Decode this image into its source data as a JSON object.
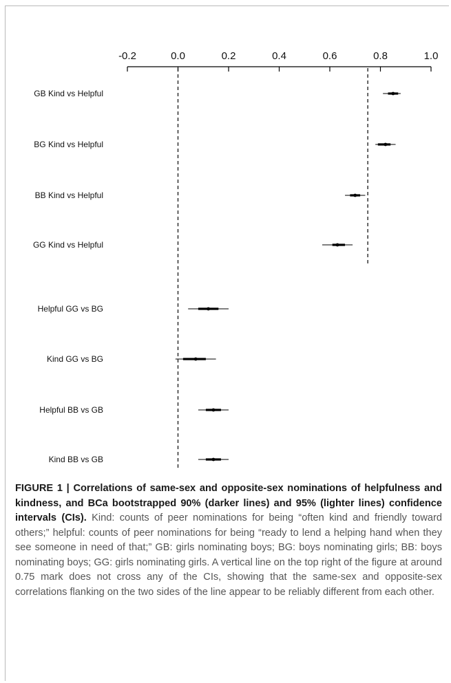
{
  "chart_data": {
    "type": "forest",
    "axis": {
      "ticks": [
        -0.2,
        0.0,
        0.2,
        0.4,
        0.6,
        0.8,
        1.0
      ],
      "tick_labels": [
        "-0.2",
        "0.0",
        "0.2",
        "0.4",
        "0.6",
        "0.8",
        "1.0"
      ],
      "range": [
        -0.2,
        1.0
      ]
    },
    "reference_lines": [
      {
        "x": 0.0,
        "style": "dashed",
        "span": "all rows"
      },
      {
        "x": 0.75,
        "style": "dashed",
        "span": "top four rows"
      }
    ],
    "rows": [
      {
        "label": "GB Kind vs Helpful",
        "estimate": 0.85,
        "ci90": [
          0.83,
          0.87
        ],
        "ci95": [
          0.81,
          0.88
        ]
      },
      {
        "label": "BG Kind vs Helpful",
        "estimate": 0.82,
        "ci90": [
          0.79,
          0.84
        ],
        "ci95": [
          0.78,
          0.86
        ]
      },
      {
        "label": "BB Kind vs Helpful",
        "estimate": 0.7,
        "ci90": [
          0.68,
          0.72
        ],
        "ci95": [
          0.66,
          0.74
        ]
      },
      {
        "label": "GG Kind vs Helpful",
        "estimate": 0.63,
        "ci90": [
          0.61,
          0.66
        ],
        "ci95": [
          0.57,
          0.69
        ]
      },
      {
        "label": "Helpful GG vs BG",
        "estimate": 0.12,
        "ci90": [
          0.08,
          0.16
        ],
        "ci95": [
          0.04,
          0.2
        ]
      },
      {
        "label": "Kind GG vs BG",
        "estimate": 0.07,
        "ci90": [
          0.02,
          0.11
        ],
        "ci95": [
          -0.01,
          0.15
        ]
      },
      {
        "label": "Helpful BB vs GB",
        "estimate": 0.14,
        "ci90": [
          0.11,
          0.17
        ],
        "ci95": [
          0.08,
          0.2
        ]
      },
      {
        "label": "Kind BB vs GB",
        "estimate": 0.14,
        "ci90": [
          0.11,
          0.17
        ],
        "ci95": [
          0.08,
          0.2
        ]
      }
    ]
  },
  "caption": {
    "lead": "FIGURE 1 | Correlations of same-sex and opposite-sex nominations of helpfulness and kindness, and BCa bootstrapped 90% (darker lines) and 95% (lighter lines) confidence intervals (CIs).",
    "body": "Kind: counts of peer nominations for being “often kind and friendly toward others;” helpful: counts of peer nominations for being “ready to lend a helping hand when they see someone in need of that;” GB: girls nominating boys; BG: boys nominating girls; BB: boys nominating boys; GG: girls nominating girls. A vertical line on the top right of the figure at around 0.75 mark does not cross any of the CIs, showing that the same-sex and opposite-sex correlations flanking on the two sides of the line appear to be reliably different from each other."
  }
}
